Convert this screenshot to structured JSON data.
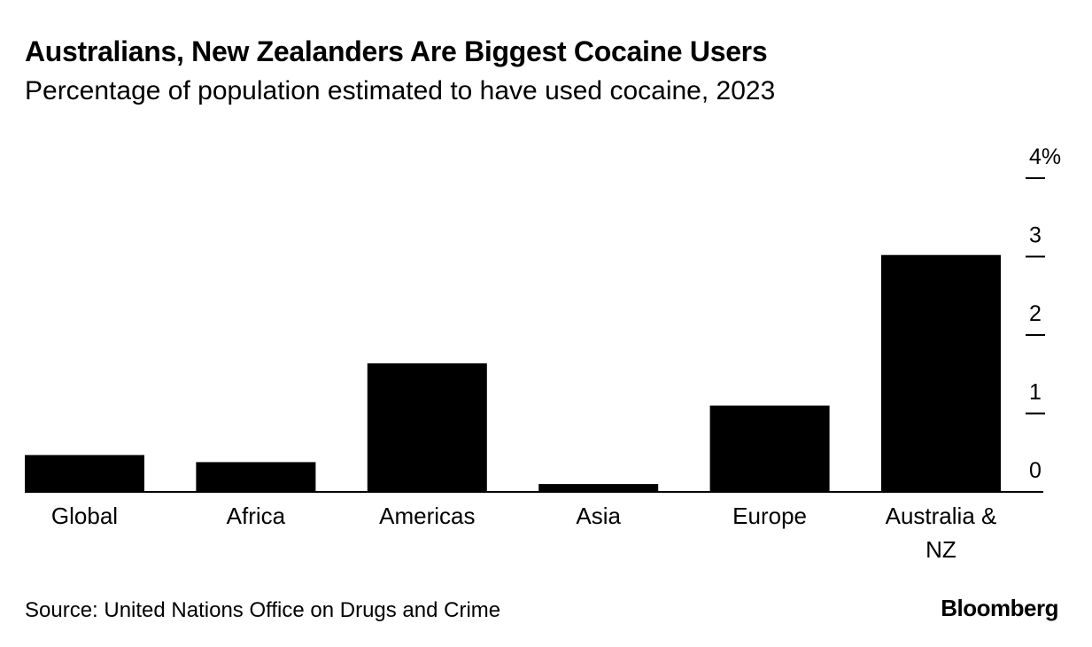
{
  "header": {
    "title": "Australians, New Zealanders Are Biggest Cocaine Users",
    "subtitle": "Percentage of population estimated to have used cocaine, 2023"
  },
  "footer": {
    "source": "Source: United Nations Office on Drugs and Crime",
    "brand": "Bloomberg"
  },
  "colors": {
    "bar": "#000000",
    "axis": "#000000",
    "background": "#ffffff"
  },
  "chart_data": {
    "type": "bar",
    "title": "Australians, New Zealanders Are Biggest Cocaine Users",
    "subtitle": "Percentage of population estimated to have used cocaine, 2023",
    "categories": [
      "Global",
      "Africa",
      "Americas",
      "Asia",
      "Europe",
      "Australia & NZ"
    ],
    "category_lines": [
      [
        "Global"
      ],
      [
        "Africa"
      ],
      [
        "Americas"
      ],
      [
        "Asia"
      ],
      [
        "Europe"
      ],
      [
        "Australia &",
        "NZ"
      ]
    ],
    "values": [
      0.47,
      0.38,
      1.64,
      0.1,
      1.1,
      3.02
    ],
    "xlabel": "",
    "ylabel": "",
    "ylim": [
      0,
      4
    ],
    "yticks": [
      0,
      1,
      2,
      3,
      4
    ],
    "ytick_labels": [
      "0",
      "1",
      "2",
      "3",
      "4%"
    ],
    "y_axis_side": "right",
    "grid": false,
    "legend": "none"
  }
}
